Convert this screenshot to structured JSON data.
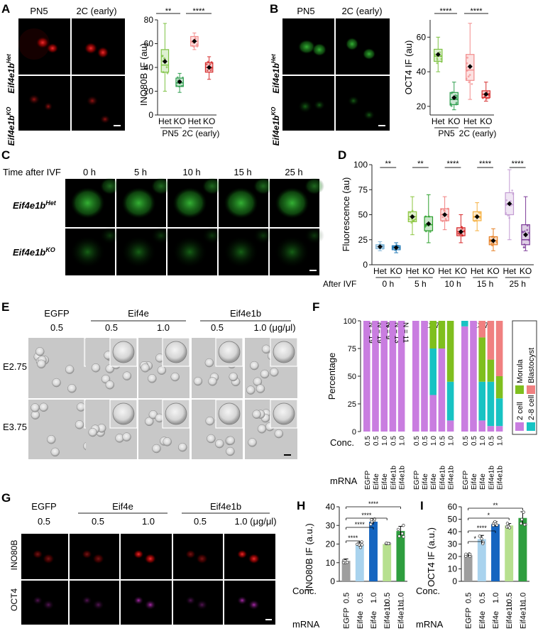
{
  "panels": {
    "A": {
      "label": "A",
      "img_cols": [
        "PN5",
        "2C (early)"
      ],
      "img_rows": [
        "Eif4e1b",
        "Eif4e1b"
      ],
      "img_rows_sup": [
        "Het",
        "KO"
      ],
      "sig": [
        "**",
        "****"
      ],
      "group_labels": [
        "PN5",
        "2C (early)"
      ],
      "chart": {
        "type": "box",
        "ylabel": "INO80B IF (au)",
        "ylim": [
          0,
          80
        ],
        "yticks": [
          0,
          20,
          40,
          60,
          80
        ],
        "categories": [
          "Het",
          "KO",
          "Het",
          "KO"
        ],
        "colors": [
          "#7dc242",
          "#2f9e4f",
          "#f28b8b",
          "#d62e2e"
        ],
        "boxes": [
          {
            "min": 20,
            "q1": 36,
            "median": 42,
            "q3": 55,
            "max": 77,
            "mean": 45
          },
          {
            "min": 19,
            "q1": 24,
            "median": 27,
            "q3": 31,
            "max": 35,
            "mean": 28
          },
          {
            "min": 55,
            "q1": 58,
            "median": 62,
            "q3": 66,
            "max": 69,
            "mean": 62
          },
          {
            "min": 30,
            "q1": 36,
            "median": 40,
            "q3": 44,
            "max": 49,
            "mean": 40
          }
        ]
      }
    },
    "B": {
      "label": "B",
      "img_cols": [
        "PN5",
        "2C (early)"
      ],
      "img_rows": [
        "Eif4e1b",
        "Eif4e1b"
      ],
      "img_rows_sup": [
        "Het",
        "KO"
      ],
      "sig": [
        "****",
        "****"
      ],
      "group_labels": [
        "PN5",
        "2C (early)"
      ],
      "chart": {
        "type": "box",
        "ylabel": "OCT4 IF (au)",
        "ylim": [
          15,
          70
        ],
        "yticks": [
          20,
          40,
          60
        ],
        "categories": [
          "Het",
          "KO",
          "Het",
          "KO"
        ],
        "colors": [
          "#7dc242",
          "#2f9e4f",
          "#f28b8b",
          "#d62e2e"
        ],
        "boxes": [
          {
            "min": 40,
            "q1": 46,
            "median": 49,
            "q3": 53,
            "max": 60,
            "mean": 50
          },
          {
            "min": 18,
            "q1": 21,
            "median": 24,
            "q3": 28,
            "max": 34,
            "mean": 25
          },
          {
            "min": 24,
            "q1": 35,
            "median": 41,
            "q3": 50,
            "max": 68,
            "mean": 43
          },
          {
            "min": 23,
            "q1": 25,
            "median": 27,
            "q3": 29,
            "max": 34,
            "mean": 27
          }
        ]
      }
    },
    "C": {
      "label": "C",
      "time_title": "Time after IVF",
      "times": [
        "0 h",
        "5 h",
        "10 h",
        "15 h",
        "25 h"
      ],
      "rows": [
        "Eif4e1b",
        "Eif4e1b"
      ],
      "rows_sup": [
        "Het",
        "KO"
      ]
    },
    "D": {
      "label": "D",
      "sig": [
        "**",
        "**",
        "****",
        "****",
        "****"
      ],
      "after_label": "After IVF",
      "time_labels": [
        "0 h",
        "5 h",
        "10 h",
        "15 h",
        "25 h"
      ],
      "chart": {
        "type": "box",
        "ylabel": "Fluorescence (au)",
        "ylim": [
          0,
          100
        ],
        "yticks": [
          0,
          25,
          50,
          75,
          100
        ],
        "categories": [
          "Het",
          "KO",
          "Het",
          "KO",
          "Het",
          "KO",
          "Het",
          "KO",
          "Het",
          "KO"
        ],
        "colors": [
          "#7fb3d5",
          "#1f77b4",
          "#8cc63f",
          "#2ca02c",
          "#f08080",
          "#d62728",
          "#f5b041",
          "#e67e22",
          "#c39bd3",
          "#7d3c98"
        ],
        "boxes": [
          {
            "min": 14,
            "q1": 16,
            "median": 18,
            "q3": 20,
            "max": 23,
            "mean": 18
          },
          {
            "min": 12,
            "q1": 15,
            "median": 17,
            "q3": 19,
            "max": 22,
            "mean": 17
          },
          {
            "min": 30,
            "q1": 43,
            "median": 48,
            "q3": 53,
            "max": 68,
            "mean": 48
          },
          {
            "min": 22,
            "q1": 34,
            "median": 40,
            "q3": 48,
            "max": 70,
            "mean": 41
          },
          {
            "min": 35,
            "q1": 44,
            "median": 50,
            "q3": 56,
            "max": 68,
            "mean": 50
          },
          {
            "min": 22,
            "q1": 29,
            "median": 33,
            "q3": 37,
            "max": 50,
            "mean": 33
          },
          {
            "min": 34,
            "q1": 44,
            "median": 48,
            "q3": 53,
            "max": 62,
            "mean": 48
          },
          {
            "min": 14,
            "q1": 20,
            "median": 24,
            "q3": 28,
            "max": 36,
            "mean": 24
          },
          {
            "min": 25,
            "q1": 50,
            "median": 60,
            "q3": 72,
            "max": 95,
            "mean": 61
          },
          {
            "min": 14,
            "q1": 20,
            "median": 25,
            "q3": 40,
            "max": 68,
            "mean": 30
          }
        ]
      }
    },
    "E": {
      "label": "E",
      "groups": [
        {
          "name": "EGFP",
          "concs": [
            "0.5"
          ]
        },
        {
          "name": "Eif4e",
          "concs": [
            "0.5",
            "1.0"
          ]
        },
        {
          "name": "Eif4e1b",
          "concs": [
            "0.5",
            "1.0 (μg/μl)"
          ]
        }
      ],
      "rows": [
        "E2.75",
        "E3.75"
      ]
    },
    "F": {
      "label": "F",
      "stages": [
        "E1.75",
        "E2.75",
        "E3.75"
      ],
      "ylabel": "Percentage",
      "yticks": [
        0,
        25,
        50,
        75,
        100
      ],
      "n_labels": [
        "N = 19",
        "N = 19",
        "N = 9",
        "N = 13",
        "N = 11"
      ],
      "conc_label": "Conc.",
      "mrna_label": "mRNA",
      "concs": [
        "0.5",
        "0.5",
        "1.0",
        "0.5",
        "1.0"
      ],
      "mrnas": [
        "EGFP",
        "Eif4e",
        "Eif4e",
        "Eif4e1b",
        "Eif4e1b"
      ],
      "legend": [
        {
          "name": "Morula",
          "color": "#7fbf1e"
        },
        {
          "name": "Blastocyst",
          "color": "#f08080"
        },
        {
          "name": "2 cell",
          "color": "#c97de0"
        },
        {
          "name": "2-8 cell",
          "color": "#17c3c3"
        }
      ],
      "chart_data": {
        "type": "bar",
        "stacked": true,
        "stages": [
          "E1.75",
          "E2.75",
          "E3.75"
        ],
        "categories": [
          "EGFP",
          "Eif4e",
          "Eif4e",
          "Eif4e1b",
          "Eif4e1b"
        ],
        "series_order": [
          "2 cell",
          "2-8 cell",
          "Morula",
          "Blastocyst"
        ],
        "values": [
          [
            [
              100,
              0,
              0,
              0
            ],
            [
              100,
              0,
              0,
              0
            ],
            [
              100,
              0,
              0,
              0
            ],
            [
              100,
              0,
              0,
              0
            ],
            [
              100,
              0,
              0,
              0
            ]
          ],
          [
            [
              100,
              0,
              0,
              0
            ],
            [
              100,
              0,
              0,
              0
            ],
            [
              33,
              42,
              25,
              0
            ],
            [
              75,
              0,
              25,
              0
            ],
            [
              10,
              35,
              55,
              0
            ]
          ],
          [
            [
              95,
              5,
              0,
              0
            ],
            [
              100,
              0,
              0,
              0
            ],
            [
              10,
              35,
              40,
              15
            ],
            [
              5,
              40,
              20,
              35
            ],
            [
              5,
              25,
              20,
              50
            ]
          ]
        ]
      }
    },
    "G": {
      "label": "G",
      "groups": [
        {
          "name": "EGFP",
          "concs": [
            "0.5"
          ]
        },
        {
          "name": "Eif4e",
          "concs": [
            "0.5",
            "1.0"
          ]
        },
        {
          "name": "Eif4e1b",
          "concs": [
            "0.5",
            "1.0 (μg/μl)"
          ]
        }
      ],
      "rows": [
        "INO80B",
        "OCT4"
      ]
    },
    "H": {
      "label": "H",
      "sig": [
        "****",
        "****",
        "****",
        "****"
      ],
      "conc_label": "Conc.",
      "mrna_label": "mRNA",
      "chart_data": {
        "type": "bar",
        "ylabel": "INO80B IF (a.u.)",
        "ylim": [
          0,
          40
        ],
        "yticks": [
          0,
          10,
          20,
          30,
          40
        ],
        "categories": [
          "EGFP",
          "Eif4e",
          "Eif4e",
          "Eif4e1b",
          "Eif4e1b"
        ],
        "concs": [
          "0.5",
          "0.5",
          "1.0",
          "0.5",
          "1.0"
        ],
        "values": [
          11,
          19.5,
          32,
          20,
          27
        ],
        "errors": [
          1,
          1.5,
          1.5,
          0.5,
          2.5
        ],
        "colors": [
          "#9e9e9e",
          "#a9d3ee",
          "#1565c0",
          "#b7e08f",
          "#2e9e3e"
        ]
      }
    },
    "I": {
      "label": "I",
      "sig": [
        "*",
        "****",
        "*",
        "**"
      ],
      "conc_label": "Conc.",
      "mrna_label": "mRNA",
      "chart_data": {
        "type": "bar",
        "ylabel": "OCT4 IF (a.u.)",
        "ylim": [
          0,
          60
        ],
        "yticks": [
          0,
          10,
          20,
          30,
          40,
          50,
          60
        ],
        "categories": [
          "EGFP",
          "Eif4e",
          "Eif4e",
          "Eif4e1b",
          "Eif4e1b"
        ],
        "concs": [
          "0.5",
          "0.5",
          "1.0",
          "0.5",
          "1.0"
        ],
        "values": [
          21,
          34,
          46,
          45,
          51
        ],
        "errors": [
          1,
          3,
          2,
          1.5,
          5
        ],
        "colors": [
          "#9e9e9e",
          "#a9d3ee",
          "#1565c0",
          "#b7e08f",
          "#2e9e3e"
        ]
      }
    }
  }
}
